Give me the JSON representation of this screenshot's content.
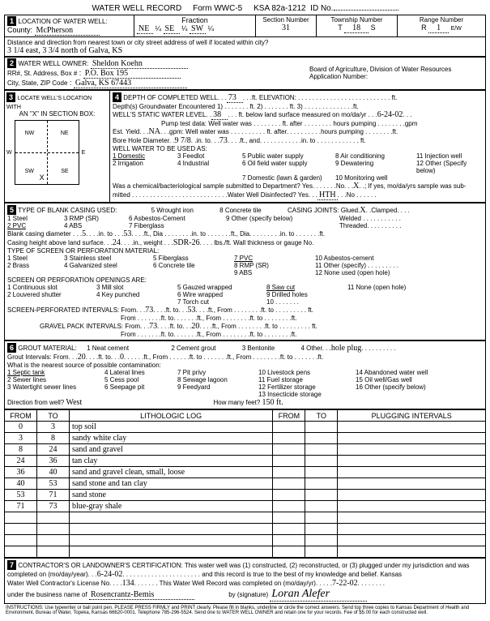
{
  "form": {
    "title": "WATER WELL RECORD",
    "form_no": "Form WWC-5",
    "ksa": "KSA 82a-1212",
    "id_no": ""
  },
  "location": {
    "section_label": "1",
    "title": "LOCATION OF WATER WELL:",
    "county_label": "County:",
    "county": "McPherson",
    "fraction_label": "Fraction",
    "ne": "NE",
    "se": "SE",
    "sw": "SW",
    "quarter": "¼",
    "section_num_label": "Section Number",
    "section_num": "31",
    "township_label": "Township Number",
    "township_t": "T",
    "township": "18",
    "township_s": "S",
    "range_label": "Range Number",
    "range_r": "R",
    "range": "1",
    "range_ew": "E/W",
    "distance_label": "Distance and direction from nearest town or city street address of well if located within city?",
    "distance": "3 1/4 east, 3 3/4 north of Galva, KS"
  },
  "owner": {
    "section_label": "2",
    "title": "WATER WELL OWNER:",
    "name": "Sheldon Koehn",
    "addr_label": "RR#, St. Address, Box #",
    "addr": "P.O. Box 195",
    "city_label": "City, State, ZIP Code",
    "city": "Galva, KS  67443",
    "board": "Board of Agriculture, Division of Water Resources",
    "app_no": "Application Number:"
  },
  "locate": {
    "section_label": "3",
    "title": "LOCATE WELL'S LOCATION WITH",
    "box_label": "AN \"X\" IN SECTION BOX:",
    "nw": "NW",
    "ne": "NE",
    "sw": "SW",
    "se": "SE",
    "w": "W",
    "e": "E"
  },
  "depth": {
    "section_label": "4",
    "title": "DEPTH OF COMPLETED WELL",
    "completed": "73",
    "elevation_label": "ELEVATION:",
    "gw_label": "Depth(s) Groundwater Encountered",
    "gw1": "1)",
    "gw2": "2)",
    "gw3": "3)",
    "static_label": "WELL'S STATIC WATER LEVEL",
    "static": "38",
    "static_date_label": "ft. below land surface measured on mo/da/yr",
    "static_date": "6-24-02",
    "pump_label": "Pump test data:  Well water was",
    "est_label": "Est. Yield",
    "est": "NA",
    "bore_label": "Bore Hole Diameter",
    "bore": "9 7/8",
    "bore_to": "73",
    "use_label": "WELL WATER TO BE USED AS:",
    "uses": [
      "1 Domestic",
      "2 Irrigation",
      "3 Feedlot",
      "4 Industrial",
      "5 Public water supply",
      "6 Oil field water supply",
      "7 Domestic (lawn & garden)",
      "8 Air conditioning",
      "9 Dewatering",
      "10 Monitoring well",
      "11 Injection well",
      "12 Other (Specify below)"
    ],
    "chemical_label": "Was a chemical/bacteriological sample submitted to Department? Yes",
    "chemical_no": "No",
    "chemical_x": "X",
    "disinfected_label": "Water Well Disinfected?  Yes",
    "disinfected": "HTH"
  },
  "casing": {
    "section_label": "5",
    "title": "TYPE OF BLANK CASING USED:",
    "types": [
      "1 Steel",
      "2 PVC",
      "3 RMP (SR)",
      "4 ABS",
      "5 Wrought iron",
      "6 Asbestos-Cement",
      "7 Fiberglass",
      "8 Concrete tile",
      "9 Other (specify below)"
    ],
    "joints_label": "CASING JOINTS: Glued",
    "joints_x": "X",
    "clamped": "Clamped",
    "welded": "Welded",
    "threaded": "Threaded.",
    "diameter_label": "Blank casing diameter",
    "diameter": "5",
    "diameter_to": "53",
    "height_label": "Casing height above land surface",
    "height": "24",
    "weight_label": "in., weight",
    "weight": "SDR-26",
    "lbs": "lbs./ft. Wall thickness or gauge No.",
    "screen_label": "TYPE OF SCREEN OR PERFORATION MATERIAL:",
    "screen_types": [
      "1 Steel",
      "2 Brass",
      "3 Stainless steel",
      "4 Galvanized steel",
      "5 Fiberglass",
      "6 Concrete tile",
      "7 PVC",
      "8 RMP (SR)",
      "9 ABS",
      "10 Asbestos-cement",
      "11 Other (specify)",
      "12 None used (open hole)"
    ],
    "openings_label": "SCREEN OR PERFORATION OPENINGS ARE:",
    "openings": [
      "1 Continuous slot",
      "2 Louvered shutter",
      "3 Mill slot",
      "4 Key punched",
      "5 Gauzed wrapped",
      "6 Wire wrapped",
      "7 Torch cut",
      "8 Saw cut",
      "9 Drilled holes",
      "10",
      "11 None (open hole)"
    ],
    "perf_label": "SCREEN-PERFORATED INTERVALS:  From",
    "perf_from": "73",
    "perf_to": "53",
    "gravel_label": "GRAVEL PACK INTERVALS:  From",
    "gravel_from": "73",
    "gravel_to": "20"
  },
  "grout": {
    "section_label": "6",
    "title": "GROUT MATERIAL:",
    "types": [
      "1 Neat cement",
      "2 Cement grout",
      "3 Bentonite",
      "4 Other"
    ],
    "other": "hole plug",
    "intervals_label": "Grout Intervals:  From",
    "from": "20",
    "to": "0",
    "contam_label": "What is the nearest source of possible contamination:",
    "contam": [
      "1 Septic tank",
      "2 Sewer lines",
      "3 Watertight sewer lines",
      "4 Lateral lines",
      "5 Cess pool",
      "6 Seepage pit",
      "7 Pit privy",
      "8 Sewage lagoon",
      "9 Feedyard",
      "10 Livestock pens",
      "11 Fuel storage",
      "12 Fertilizer storage",
      "13 Insecticide storage",
      "14 Abandoned water well",
      "15 Oil well/Gas well",
      "16 Other (specify below)"
    ],
    "direction_label": "Direction from well?",
    "direction": "West",
    "feet_label": "How many feet?",
    "feet": "150 ft."
  },
  "log": {
    "headers": [
      "FROM",
      "TO",
      "LITHOLOGIC LOG",
      "FROM",
      "TO",
      "PLUGGING INTERVALS"
    ],
    "rows": [
      {
        "from": "0",
        "to": "3",
        "desc": "top soil"
      },
      {
        "from": "3",
        "to": "8",
        "desc": "sandy white clay"
      },
      {
        "from": "8",
        "to": "24",
        "desc": "sand and gravel"
      },
      {
        "from": "24",
        "to": "36",
        "desc": "tan clay"
      },
      {
        "from": "36",
        "to": "40",
        "desc": "sand and gravel clean, small, loose"
      },
      {
        "from": "40",
        "to": "53",
        "desc": "sand stone and tan clay"
      },
      {
        "from": "53",
        "to": "71",
        "desc": "sand stone"
      },
      {
        "from": "71",
        "to": "73",
        "desc": "blue-gray shale"
      }
    ],
    "empty_rows": 4
  },
  "cert": {
    "section_label": "7",
    "text1": "CONTRACTOR'S OR LANDOWNER'S CERTIFICATION: This water well was (1) constructed, (2) reconstructed, or (3) plugged under my jurisdiction and was",
    "text2": "completed on (mo/day/year)",
    "date1": "6-24-02",
    "text3": "and this record is true to the best of my knowledge and belief. Kansas",
    "text4": "Water Well Contractor's License No.",
    "license": "134",
    "text5": "This Water Well Record was completed on (mo/day/yr)",
    "date2": "7-22-02",
    "text6": "under the business name of",
    "business": "Rosencrantz-Bemis",
    "sig_label": "by (signature)",
    "signature": "Loran Alefer"
  },
  "instructions": "INSTRUCTIONS: Use typewriter or ball point pen. PLEASE PRESS FIRMLY and PRINT clearly. Please fill in blanks, underline or circle the correct answers. Send top three copies to Kansas Department of Health and Environment, Bureau of Water, Topeka, Kansas 66620-0001. Telephone 785-296-5524. Send one to WATER WELL OWNER and retain one for your records. Fee of $5.00 for each constructed well."
}
